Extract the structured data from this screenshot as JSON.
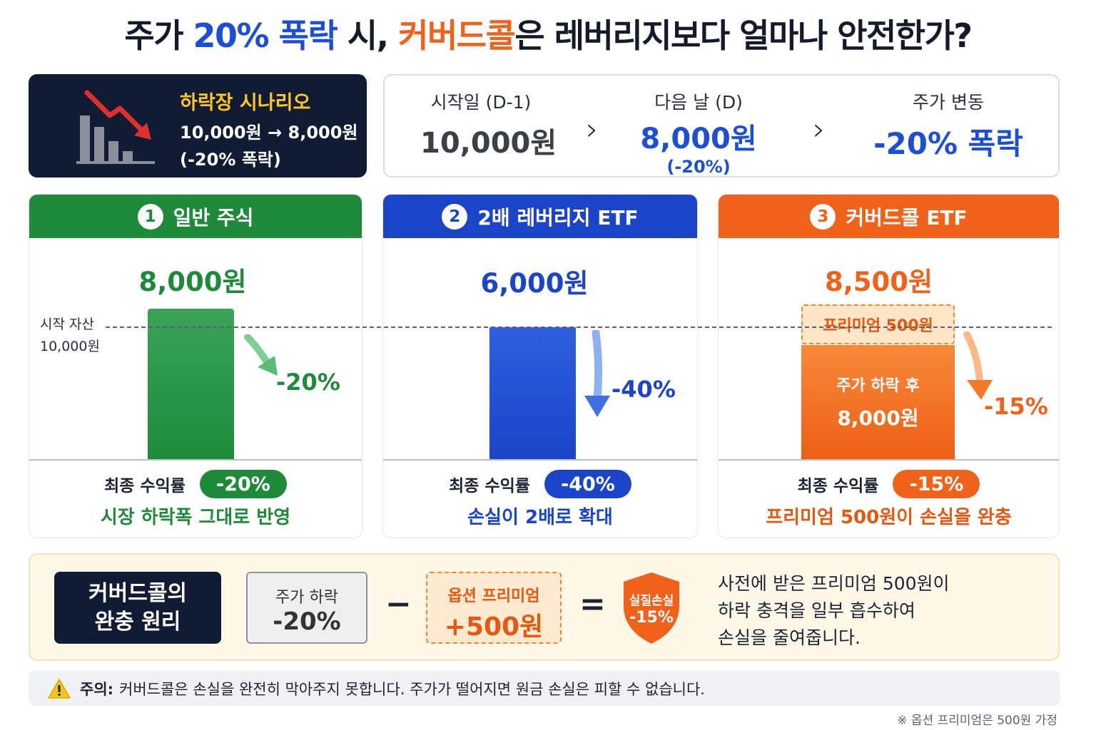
{
  "title": {
    "part1": "주가 ",
    "highlight1": "20% 폭락",
    "part2": " 시, ",
    "highlight2": "커버드콜",
    "part3": "은 레버리지보다 얼마나 안전한가?"
  },
  "scenario": {
    "title": "하락장 시나리오",
    "line1": "10,000원 → 8,000원",
    "line2": "(-20% 폭락)",
    "icon": "falling-chart-icon"
  },
  "timeline": {
    "start_label": "시작일 (D-1)",
    "start_value": "10,000원",
    "next_label": "다음 날 (D)",
    "next_value": "8,000원",
    "next_sub": "(-20%)",
    "change_label": "주가 변동",
    "change_value": "-20% 폭락",
    "arrow": "›"
  },
  "start_asset": {
    "label": "시작 자산",
    "value": "10,000원"
  },
  "columns": [
    {
      "number": "1",
      "title": "일반 주식",
      "value": "8,000원",
      "change": "-20%",
      "final_label": "최종 수익률",
      "final_return": "-20%",
      "note": "시장 하락폭 그대로 반영",
      "color": "#1e8a3a"
    },
    {
      "number": "2",
      "title": "2배 레버리지 ETF",
      "value": "6,000원",
      "change": "-40%",
      "final_label": "최종 수익률",
      "final_return": "-40%",
      "note": "손실이 2배로 확대",
      "color": "#1c44c8"
    },
    {
      "number": "3",
      "title": "커버드콜 ETF",
      "value": "8,500원",
      "change": "-15%",
      "premium_label": "프리미엄 500원",
      "bar_text1": "주가 하락 후",
      "bar_text2": "8,000원",
      "final_label": "최종 수익률",
      "final_return": "-15%",
      "note": "프리미엄 500원이 손실을 완충",
      "color": "#f0621a"
    }
  ],
  "principle": {
    "title_line1": "커버드콜의",
    "title_line2": "완충 원리",
    "box1_label": "주가 하락",
    "box1_value": "-20%",
    "minus": "−",
    "box2_label": "옵션 프리미엄",
    "box2_value": "+500원",
    "equals": "=",
    "shield_label": "실질손실",
    "shield_value": "-15%",
    "desc_line1": "사전에 받은 프리미엄 500원이",
    "desc_line2": "하락 충격을 일부 흡수하여",
    "desc_line3": "손실을 줄여줍니다."
  },
  "warning": {
    "label": "주의:",
    "text": "커버드콜은 손실을 완전히 막아주지 못합니다. 주가가 떨어지면 원금 손실은 피할 수 없습니다."
  },
  "footnote": "※ 옵션 프리미엄은 500원 가정"
}
